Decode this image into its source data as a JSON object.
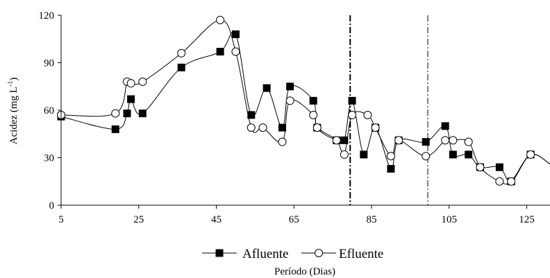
{
  "chart_data": {
    "type": "line",
    "xlabel": "Período (Dias)",
    "ylabel": "Acidez (mg L",
    "ylabel_sup": "-1",
    "ylabel_close": ")",
    "xlim": [
      5,
      131
    ],
    "ylim": [
      0,
      120
    ],
    "xticks": [
      5,
      25,
      45,
      65,
      85,
      105,
      125
    ],
    "yticks": [
      0,
      30,
      60,
      90,
      120
    ],
    "grid": false,
    "legend_position": "bottom-center",
    "vlines": [
      79.5,
      99.5
    ],
    "series": [
      {
        "name": "Afluente",
        "marker": "filled-square",
        "color": "#000000",
        "x": [
          5,
          19,
          22,
          23,
          26,
          36,
          46,
          50,
          54,
          58,
          62,
          64,
          70,
          71,
          76,
          78,
          80,
          83,
          86,
          90,
          92,
          99,
          104,
          106,
          110,
          113,
          118,
          121,
          126,
          131
        ],
        "y": [
          56,
          48,
          58,
          67,
          58,
          87,
          97,
          108,
          57,
          74,
          49,
          75,
          66,
          49,
          41,
          41,
          66,
          32,
          49,
          23,
          41,
          40,
          50,
          32,
          32,
          24,
          24,
          15,
          32,
          26
        ]
      },
      {
        "name": "Efluente",
        "marker": "open-circle",
        "color": "#000000",
        "x": [
          5,
          19,
          22,
          23,
          26,
          36,
          46,
          50,
          54,
          57,
          62,
          64,
          70,
          71,
          76,
          78,
          80,
          84,
          86,
          90,
          92,
          99,
          104,
          106,
          110,
          113,
          118,
          121,
          126,
          131
        ],
        "y": [
          57,
          58,
          78,
          77,
          78,
          96,
          117,
          97,
          49,
          49,
          40,
          66,
          57,
          49,
          41,
          32,
          57,
          57,
          49,
          31,
          41,
          31,
          41,
          41,
          40,
          24,
          15,
          15,
          32,
          26
        ]
      }
    ]
  }
}
